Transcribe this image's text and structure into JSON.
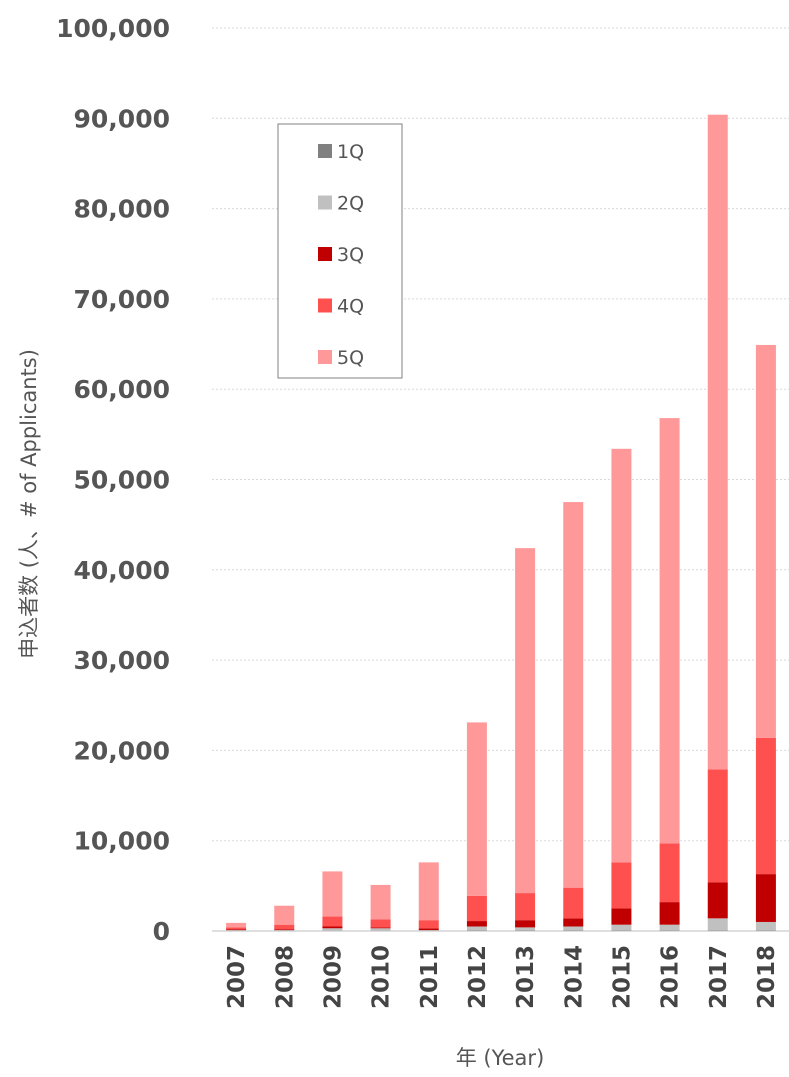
{
  "chart_data": {
    "type": "bar",
    "stacked": true,
    "categories": [
      "2007",
      "2008",
      "2009",
      "2010",
      "2011",
      "2012",
      "2013",
      "2014",
      "2015",
      "2016",
      "2017",
      "2018"
    ],
    "series": [
      {
        "name": "1Q",
        "color": "#808080",
        "values": [
          0,
          0,
          0,
          0,
          0,
          100,
          100,
          100,
          100,
          100,
          100,
          100
        ]
      },
      {
        "name": "2Q",
        "color": "#c0c0c0",
        "values": [
          100,
          100,
          300,
          300,
          100,
          400,
          300,
          400,
          600,
          600,
          1300,
          900
        ]
      },
      {
        "name": "3Q",
        "color": "#c00000",
        "values": [
          100,
          100,
          200,
          100,
          200,
          600,
          800,
          900,
          1800,
          2500,
          4000,
          5300
        ]
      },
      {
        "name": "4Q",
        "color": "#ff5050",
        "values": [
          200,
          500,
          1100,
          900,
          900,
          2800,
          3000,
          3400,
          5100,
          6500,
          12500,
          15100
        ]
      },
      {
        "name": "5Q",
        "color": "#ff9999",
        "values": [
          500,
          2100,
          5000,
          3800,
          6400,
          19200,
          38200,
          42700,
          45800,
          47100,
          72500,
          43500
        ]
      }
    ],
    "ylim": [
      0,
      100000
    ],
    "yticks": [
      "0",
      "10,000",
      "20,000",
      "30,000",
      "40,000",
      "50,000",
      "60,000",
      "70,000",
      "80,000",
      "90,000",
      "100,000"
    ],
    "ylabel": "申込者数 (人、# of Applicants)",
    "xlabel": "年 (Year)",
    "grid": true,
    "legend_position": "top-left"
  }
}
